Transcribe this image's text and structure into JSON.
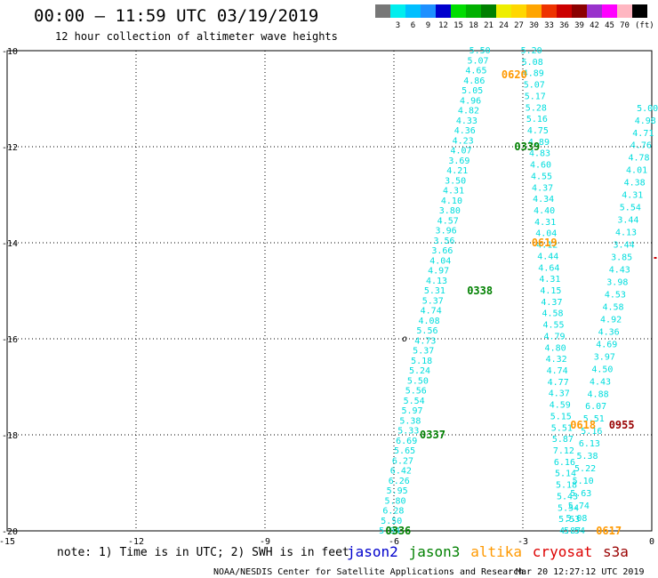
{
  "header": {
    "title": "00:00 – 11:59 UTC 03/19/2019",
    "subtitle": "12 hour collection of altimeter wave heights"
  },
  "colorbar": {
    "unit_label": "(ft)",
    "bins": [
      {
        "label": "",
        "color": "#777777"
      },
      {
        "label": "3",
        "color": "#00eeee"
      },
      {
        "label": "6",
        "color": "#00bfff"
      },
      {
        "label": "9",
        "color": "#1e90ff"
      },
      {
        "label": "12",
        "color": "#0000cd"
      },
      {
        "label": "15",
        "color": "#00dd00"
      },
      {
        "label": "18",
        "color": "#00b000"
      },
      {
        "label": "21",
        "color": "#008000"
      },
      {
        "label": "24",
        "color": "#eeee00"
      },
      {
        "label": "27",
        "color": "#ffd700"
      },
      {
        "label": "30",
        "color": "#ffa500"
      },
      {
        "label": "33",
        "color": "#ee3300"
      },
      {
        "label": "36",
        "color": "#cc0000"
      },
      {
        "label": "39",
        "color": "#8b0000"
      },
      {
        "label": "42",
        "color": "#9932cc"
      },
      {
        "label": "45",
        "color": "#ff00ff"
      },
      {
        "label": "70",
        "color": "#ffb6c1"
      },
      {
        "label": "",
        "color": "#000000"
      }
    ]
  },
  "footer": {
    "note": "note: 1) Time is in UTC; 2) SWH is in feet",
    "credit": "NOAA/NESDIS Center for Satellite Applications and Research",
    "generated": "Mar 20 12:27:12 UTC 2019",
    "legend": [
      {
        "name": "jason2",
        "color": "#0000cc"
      },
      {
        "name": "jason3",
        "color": "#008000"
      },
      {
        "name": "altika",
        "color": "#ff9900"
      },
      {
        "name": "cryosat",
        "color": "#dd0000"
      },
      {
        "name": "s3a",
        "color": "#990000"
      }
    ]
  },
  "chart_data": {
    "type": "scatter",
    "xlim": [
      -15,
      0
    ],
    "ylim": [
      -20,
      -10
    ],
    "x_ticks": [
      -15,
      -12,
      -9,
      -6,
      -3,
      0
    ],
    "y_ticks": [
      -10,
      -12,
      -14,
      -16,
      -18,
      -20
    ],
    "grid": true,
    "grid_style": "dotted",
    "value_color": "#00dddd",
    "tracks": [
      {
        "name": "track-a",
        "satellite": "jason3",
        "label": "0336",
        "label_color": "#008000",
        "label_at": [
          -5.9,
          -20
        ],
        "values": [
          "5.84",
          "5.50",
          "6.28",
          "5.80",
          "5.95",
          "6.26",
          "6.42",
          "6.27",
          "5.65",
          "6.69",
          "5.33",
          "5.38",
          "5.97",
          "5.54",
          "5.56",
          "5.50",
          "5.24",
          "5.18",
          "5.37",
          "4.73",
          "5.56",
          "4.08",
          "4.74",
          "5.37",
          "5.31",
          "4.13",
          "4.97",
          "4.04",
          "3.66",
          "3.56",
          "3.96",
          "4.57",
          "3.80",
          "4.10",
          "4.31",
          "3.50",
          "4.21",
          "3.69",
          "4.07",
          "4.23",
          "4.36",
          "4.33",
          "4.82",
          "4.96",
          "5.05",
          "4.86",
          "4.65",
          "5.07",
          "5.50"
        ],
        "start": [
          -6.1,
          -20.0
        ],
        "end": [
          -4.0,
          -10.0
        ]
      },
      {
        "name": "track-b",
        "satellite": "jason3",
        "label": "0337",
        "label_color": "#008000",
        "label_at": [
          -5.1,
          -18.0
        ],
        "values": [],
        "start": [
          -5.0,
          -18.0
        ],
        "end": [
          -5.0,
          -18.0
        ]
      },
      {
        "name": "track-c",
        "satellite": "jason3",
        "label": "0338",
        "label_color": "#008000",
        "label_at": [
          -4.0,
          -15.0
        ],
        "values": [],
        "start": [
          -4.0,
          -15.0
        ],
        "end": [
          -4.0,
          -15.0
        ]
      },
      {
        "name": "track-d",
        "satellite": "jason3",
        "label": "0339",
        "label_color": "#008000",
        "label_at": [
          -2.9,
          -12.0
        ],
        "values": [
          "5.20",
          "5.08",
          "4.89",
          "5.07",
          "5.17",
          "5.28",
          "5.16",
          "4.75",
          "4.89",
          "4.83",
          "4.60",
          "4.55",
          "4.37",
          "4.34",
          "4.40",
          "4.31",
          "4.04",
          "4.12",
          "4.44",
          "4.64",
          "4.31",
          "4.15",
          "4.37",
          "4.58",
          "4.55",
          "4.79",
          "4.80",
          "4.32",
          "4.74",
          "4.77",
          "4.37",
          "4.59",
          "5.15",
          "5.51",
          "5.87",
          "7.12",
          "6.16",
          "5.14",
          "5.18",
          "5.43",
          "5.54",
          "5.53",
          "4.87"
        ],
        "start": [
          -2.8,
          -10.0
        ],
        "end": [
          -1.9,
          -20.0
        ]
      },
      {
        "name": "track-e",
        "satellite": "altika",
        "label": "0617",
        "label_color": "#ff9900",
        "label_at": [
          -1.0,
          -20.0
        ],
        "values": [
          "5.54",
          "5.08",
          "5.74",
          "5.63",
          "5.10",
          "5.22",
          "5.38",
          "6.13",
          "5.16",
          "5.51",
          "6.07",
          "4.88",
          "4.43",
          "4.50",
          "3.97",
          "4.69",
          "4.36",
          "4.92",
          "4.58",
          "4.53",
          "3.98",
          "4.43",
          "3.85",
          "3.44",
          "4.13",
          "3.44",
          "5.54",
          "4.31",
          "4.38",
          "4.01",
          "4.78",
          "4.76",
          "4.71",
          "4.98",
          "5.00"
        ],
        "start": [
          -1.8,
          -20.0
        ],
        "end": [
          -0.1,
          -11.2
        ]
      },
      {
        "name": "track-f",
        "satellite": "altika",
        "label": "0618",
        "label_color": "#ff9900",
        "label_at": [
          -1.6,
          -17.8
        ],
        "values": [],
        "start": [
          -1.6,
          -17.8
        ],
        "end": [
          -1.6,
          -17.8
        ]
      },
      {
        "name": "track-g",
        "satellite": "altika",
        "label": "0619",
        "label_color": "#ff9900",
        "label_at": [
          -2.5,
          -14.0
        ],
        "values": [],
        "start": [
          -2.5,
          -14.0
        ],
        "end": [
          -2.5,
          -14.0
        ]
      },
      {
        "name": "track-h",
        "satellite": "altika",
        "label": "0620",
        "label_color": "#ff9900",
        "label_at": [
          -3.2,
          -10.5
        ],
        "values": [],
        "start": [
          -3.2,
          -10.5
        ],
        "end": [
          -3.2,
          -10.5
        ]
      },
      {
        "name": "track-i",
        "satellite": "s3a",
        "label": "0955",
        "label_color": "#990000",
        "label_at": [
          -0.7,
          -17.8
        ],
        "values": [],
        "start": [
          -0.7,
          -17.8
        ],
        "end": [
          -0.7,
          -17.8
        ]
      }
    ]
  }
}
